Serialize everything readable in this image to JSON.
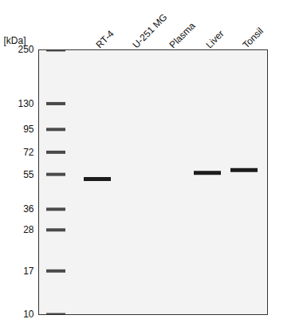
{
  "chart_data": {
    "type": "blot",
    "ylabel": "[kDa]",
    "categories": [
      null,
      "RT-4",
      "U-251 MG",
      "Plasma",
      "Liver",
      "Tonsil"
    ],
    "values": [
      null,
      52,
      null,
      null,
      56,
      58
    ],
    "color": "#1c1c1c",
    "log": "y",
    "ylim": [
      10,
      250
    ],
    "yticks": [
      10,
      17,
      28,
      36,
      55,
      72,
      95,
      130,
      250
    ]
  }
}
